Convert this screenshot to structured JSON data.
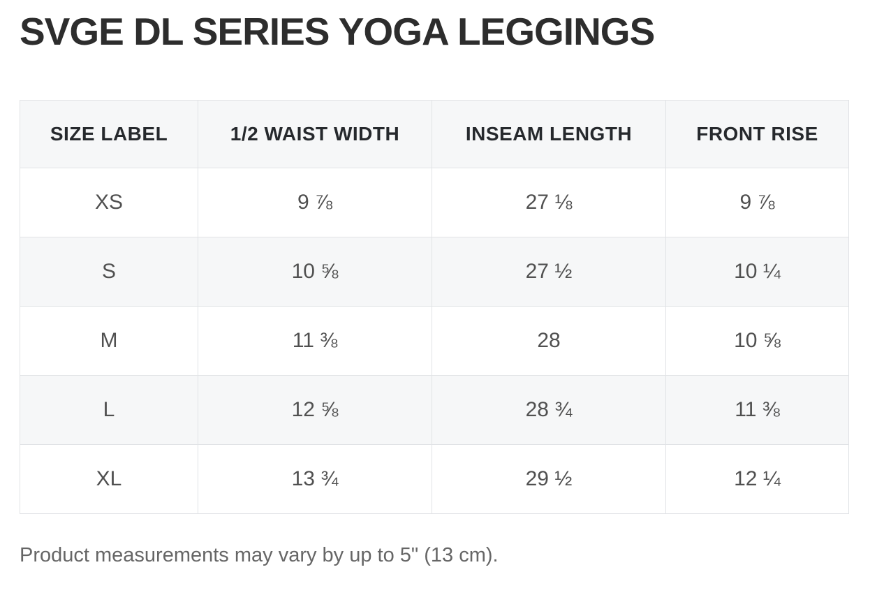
{
  "page": {
    "title": "SVGE DL SERIES YOGA LEGGINGS",
    "note": "Product measurements may vary by up to 5\" (13 cm)."
  },
  "size_chart": {
    "columns": [
      "SIZE LABEL",
      "1/2 WAIST WIDTH",
      "INSEAM LENGTH",
      "FRONT RISE"
    ],
    "rows": [
      {
        "size": "XS",
        "half_waist_width": "9 ⅞",
        "inseam_length": "27 ⅛",
        "front_rise": "9 ⅞"
      },
      {
        "size": "S",
        "half_waist_width": "10 ⅝",
        "inseam_length": "27 ½",
        "front_rise": "10 ¼"
      },
      {
        "size": "M",
        "half_waist_width": "11 ⅜",
        "inseam_length": "28",
        "front_rise": "10 ⅝"
      },
      {
        "size": "L",
        "half_waist_width": "12 ⅝",
        "inseam_length": "28 ¾",
        "front_rise": "11 ⅜"
      },
      {
        "size": "XL",
        "half_waist_width": "13 ¾",
        "inseam_length": "29 ½",
        "front_rise": "12 ¼"
      }
    ]
  },
  "colors": {
    "header_background": "#f6f7f8",
    "stripe_background": "#f6f7f8",
    "border": "#e1e3e6",
    "title_text": "#2d2d2d",
    "header_text": "#26292d",
    "cell_text": "#505050",
    "note_text": "#666666"
  }
}
